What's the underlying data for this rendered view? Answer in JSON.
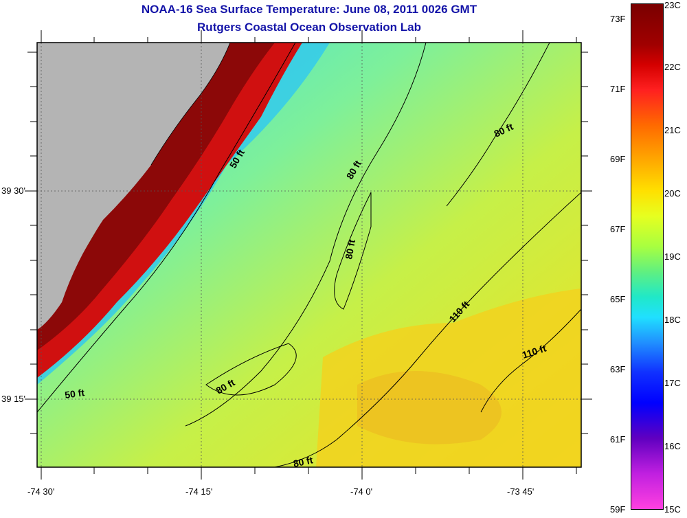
{
  "title": {
    "line1": "NOAA-16 Sea Surface Temperature:  June 08, 2011 0026 GMT",
    "line2": "Rutgers Coastal Ocean Observation Lab"
  },
  "map": {
    "land_color": "#b4b4b4",
    "lat_labels": [
      "39 30'",
      "39 15'"
    ],
    "lon_labels": [
      "-74 30'",
      "-74 15'",
      "-74 0'",
      "-73 45'"
    ],
    "contour_labels": [
      "50 ft",
      "80 ft",
      "80 ft",
      "80 ft",
      "110 ft",
      "110 ft",
      "50 ft",
      "80 ft",
      "80 ft"
    ]
  },
  "colorbar": {
    "fahrenheit": [
      "73F",
      "71F",
      "69F",
      "67F",
      "65F",
      "63F",
      "61F",
      "59F"
    ],
    "celsius": [
      "23C",
      "22C",
      "21C",
      "20C",
      "19C",
      "18C",
      "17C",
      "16C",
      "15C"
    ]
  }
}
